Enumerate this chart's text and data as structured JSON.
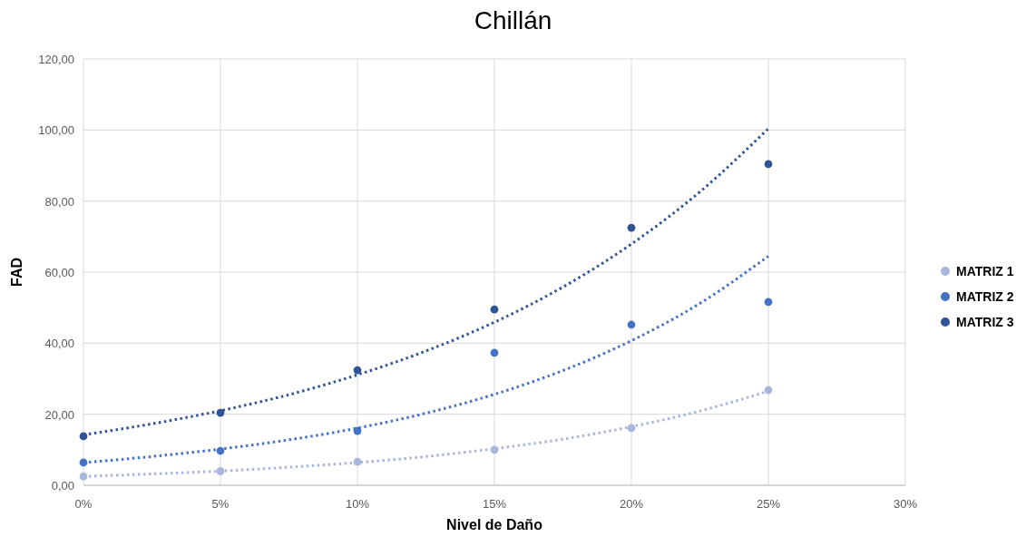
{
  "chart_data": {
    "type": "scatter",
    "title": "Chillán",
    "xlabel": "Nivel de Daño",
    "ylabel": "FAD",
    "x": [
      0,
      5,
      10,
      15,
      20,
      25
    ],
    "series": [
      {
        "name": "MATRIZ 1",
        "color": "#a9b6dd",
        "values": [
          2.5,
          4.0,
          6.6,
          10.0,
          16.1,
          26.8
        ]
      },
      {
        "name": "MATRIZ 2",
        "color": "#4472c4",
        "values": [
          6.4,
          9.7,
          15.3,
          37.3,
          45.2,
          51.6
        ]
      },
      {
        "name": "MATRIZ 3",
        "color": "#2f5597",
        "values": [
          13.8,
          20.4,
          32.4,
          49.5,
          72.5,
          90.4
        ]
      },
      {
        "type": "line",
        "line_style": "dotted",
        "marker": "none",
        "color": "#a9b6dd",
        "x": [
          0,
          2.5,
          5,
          7.5,
          10,
          12.5,
          15,
          17.5,
          20,
          22.5,
          25
        ],
        "values": [
          2.5,
          3.2,
          4.0,
          5.1,
          6.4,
          8.1,
          10.3,
          13.0,
          16.5,
          20.9,
          26.5
        ]
      },
      {
        "type": "line",
        "line_style": "dotted",
        "marker": "none",
        "color": "#4472c4",
        "x": [
          0,
          2.5,
          5,
          7.5,
          10,
          12.5,
          15,
          17.5,
          20,
          22.5,
          25
        ],
        "values": [
          6.4,
          8.1,
          10.2,
          12.8,
          16.1,
          20.3,
          25.6,
          32.3,
          40.7,
          51.2,
          64.5
        ]
      },
      {
        "type": "line",
        "line_style": "dotted",
        "marker": "none",
        "color": "#2f5597",
        "x": [
          0,
          2.5,
          5,
          7.5,
          10,
          12.5,
          15,
          17.5,
          20,
          22.5,
          25
        ],
        "values": [
          14.2,
          17.3,
          21.0,
          25.5,
          31.1,
          37.8,
          45.9,
          55.8,
          67.9,
          82.6,
          100.4
        ]
      }
    ],
    "xlim": [
      0,
      30
    ],
    "xticks": [
      {
        "value": 0,
        "label": "0%"
      },
      {
        "value": 5,
        "label": "5%"
      },
      {
        "value": 10,
        "label": "10%"
      },
      {
        "value": 15,
        "label": "15%"
      },
      {
        "value": 20,
        "label": "20%"
      },
      {
        "value": 25,
        "label": "25%"
      },
      {
        "value": 30,
        "label": "30%"
      }
    ],
    "ylim": [
      0,
      120
    ],
    "yticks": [
      {
        "value": 0,
        "label": "0,00"
      },
      {
        "value": 20,
        "label": "20,00"
      },
      {
        "value": 40,
        "label": "40,00"
      },
      {
        "value": 60,
        "label": "60,00"
      },
      {
        "value": 80,
        "label": "80,00"
      },
      {
        "value": 100,
        "label": "100,00"
      },
      {
        "value": 120,
        "label": "120,00"
      }
    ],
    "grid": true,
    "legend": "right",
    "marker": "circle"
  }
}
